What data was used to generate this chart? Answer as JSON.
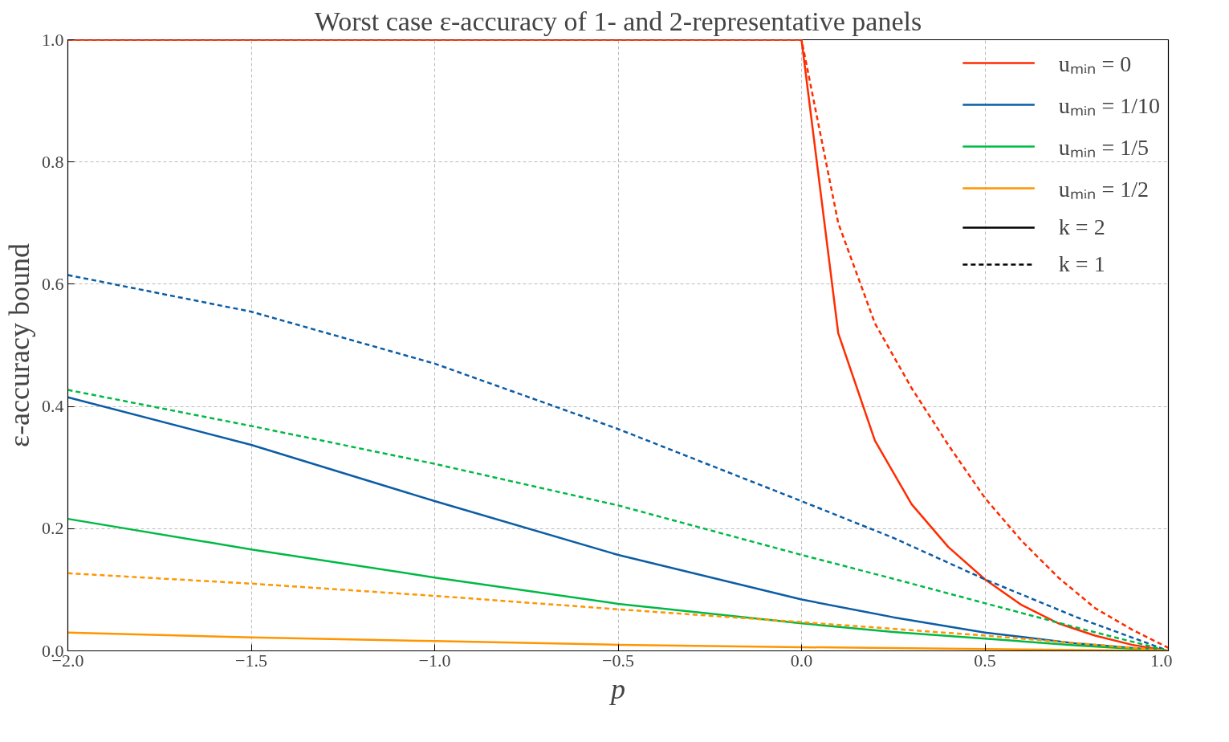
{
  "chart_data": {
    "type": "line",
    "title": "Worst case ε-accuracy of 1- and 2-representative panels",
    "xlabel": "p",
    "ylabel": "ε-accuracy bound",
    "xlim": [
      -2,
      1.0
    ],
    "ylim": [
      0,
      1.0
    ],
    "xticks": [
      {
        "value": -2,
        "label": "−2.0"
      },
      {
        "value": -1.5,
        "label": "−1.5"
      },
      {
        "value": -1,
        "label": "−1.0"
      },
      {
        "value": -0.5,
        "label": "−0.5"
      },
      {
        "value": 0,
        "label": "0.0"
      },
      {
        "value": 0.5,
        "label": "0.5"
      },
      {
        "value": 1,
        "label": "1.0"
      }
    ],
    "yticks": [
      {
        "value": 0,
        "label": "0.0"
      },
      0.2,
      0.4,
      0.6,
      0.8,
      {
        "value": 1,
        "label": "1.0"
      }
    ],
    "grid": true,
    "legend": "top right",
    "series": [
      {
        "name": "uₘᵢₙ = 0",
        "color": "#ff2c00",
        "line_style": "solid",
        "x": [
          -2,
          -1,
          0,
          0.1,
          0.2,
          0.3,
          0.4,
          0.5,
          0.6,
          0.7,
          0.8,
          0.9,
          1.0
        ],
        "values": [
          1.0,
          1.0,
          1.0,
          0.52,
          0.344,
          0.24,
          0.17,
          0.117,
          0.075,
          0.045,
          0.025,
          0.01,
          0
        ]
      },
      {
        "color": "#ff2c00",
        "line_style": "dashed",
        "x": [
          -2,
          -1,
          0,
          0.1,
          0.2,
          0.3,
          0.4,
          0.5,
          0.6,
          0.7,
          0.8,
          0.9,
          1.0
        ],
        "values": [
          1.0,
          1.0,
          1.0,
          0.7,
          0.536,
          0.43,
          0.337,
          0.25,
          0.18,
          0.12,
          0.07,
          0.035,
          0.005
        ]
      },
      {
        "name": "uₘᵢₙ = 1/10",
        "color": "#0c5da5",
        "line_style": "solid",
        "x": [
          -2,
          -1.5,
          -1,
          -0.5,
          0,
          0.25,
          0.5,
          0.75,
          1.0
        ],
        "values": [
          0.415,
          0.337,
          0.245,
          0.157,
          0.084,
          0.055,
          0.03,
          0.012,
          0
        ]
      },
      {
        "color": "#0c5da5",
        "line_style": "dashed",
        "x": [
          -2,
          -1.5,
          -1,
          -0.5,
          0,
          0.25,
          0.5,
          0.75,
          1.0
        ],
        "values": [
          0.615,
          0.555,
          0.47,
          0.363,
          0.245,
          0.185,
          0.117,
          0.055,
          0
        ]
      },
      {
        "name": "uₘᵢₙ = 1/5",
        "color": "#00b945",
        "line_style": "solid",
        "x": [
          -2,
          -1.5,
          -1,
          -0.5,
          0,
          0.25,
          0.5,
          0.75,
          1.0
        ],
        "values": [
          0.216,
          0.166,
          0.12,
          0.077,
          0.045,
          0.031,
          0.02,
          0.009,
          0
        ]
      },
      {
        "color": "#00b945",
        "line_style": "dashed",
        "x": [
          -2,
          -1.5,
          -1,
          -0.5,
          0,
          0.25,
          0.5,
          0.75,
          1.0
        ],
        "values": [
          0.427,
          0.368,
          0.306,
          0.238,
          0.157,
          0.118,
          0.078,
          0.038,
          0
        ]
      },
      {
        "name": "uₘᵢₙ = 1/2",
        "color": "#ff9500",
        "line_style": "solid",
        "x": [
          -2,
          -1.5,
          -1,
          -0.5,
          0,
          0.5,
          1.0
        ],
        "values": [
          0.03,
          0.022,
          0.016,
          0.01,
          0.006,
          0.003,
          0
        ]
      },
      {
        "color": "#ff9500",
        "line_style": "dashed",
        "x": [
          -2,
          -1.5,
          -1,
          -0.5,
          0,
          0.5,
          1.0
        ],
        "values": [
          0.127,
          0.11,
          0.09,
          0.068,
          0.047,
          0.025,
          0
        ]
      },
      {
        "name": "k = 2",
        "color": "#000000",
        "line_style": "solid"
      },
      {
        "name": "k = 1",
        "color": "#000000",
        "line_style": "dashed"
      }
    ]
  }
}
